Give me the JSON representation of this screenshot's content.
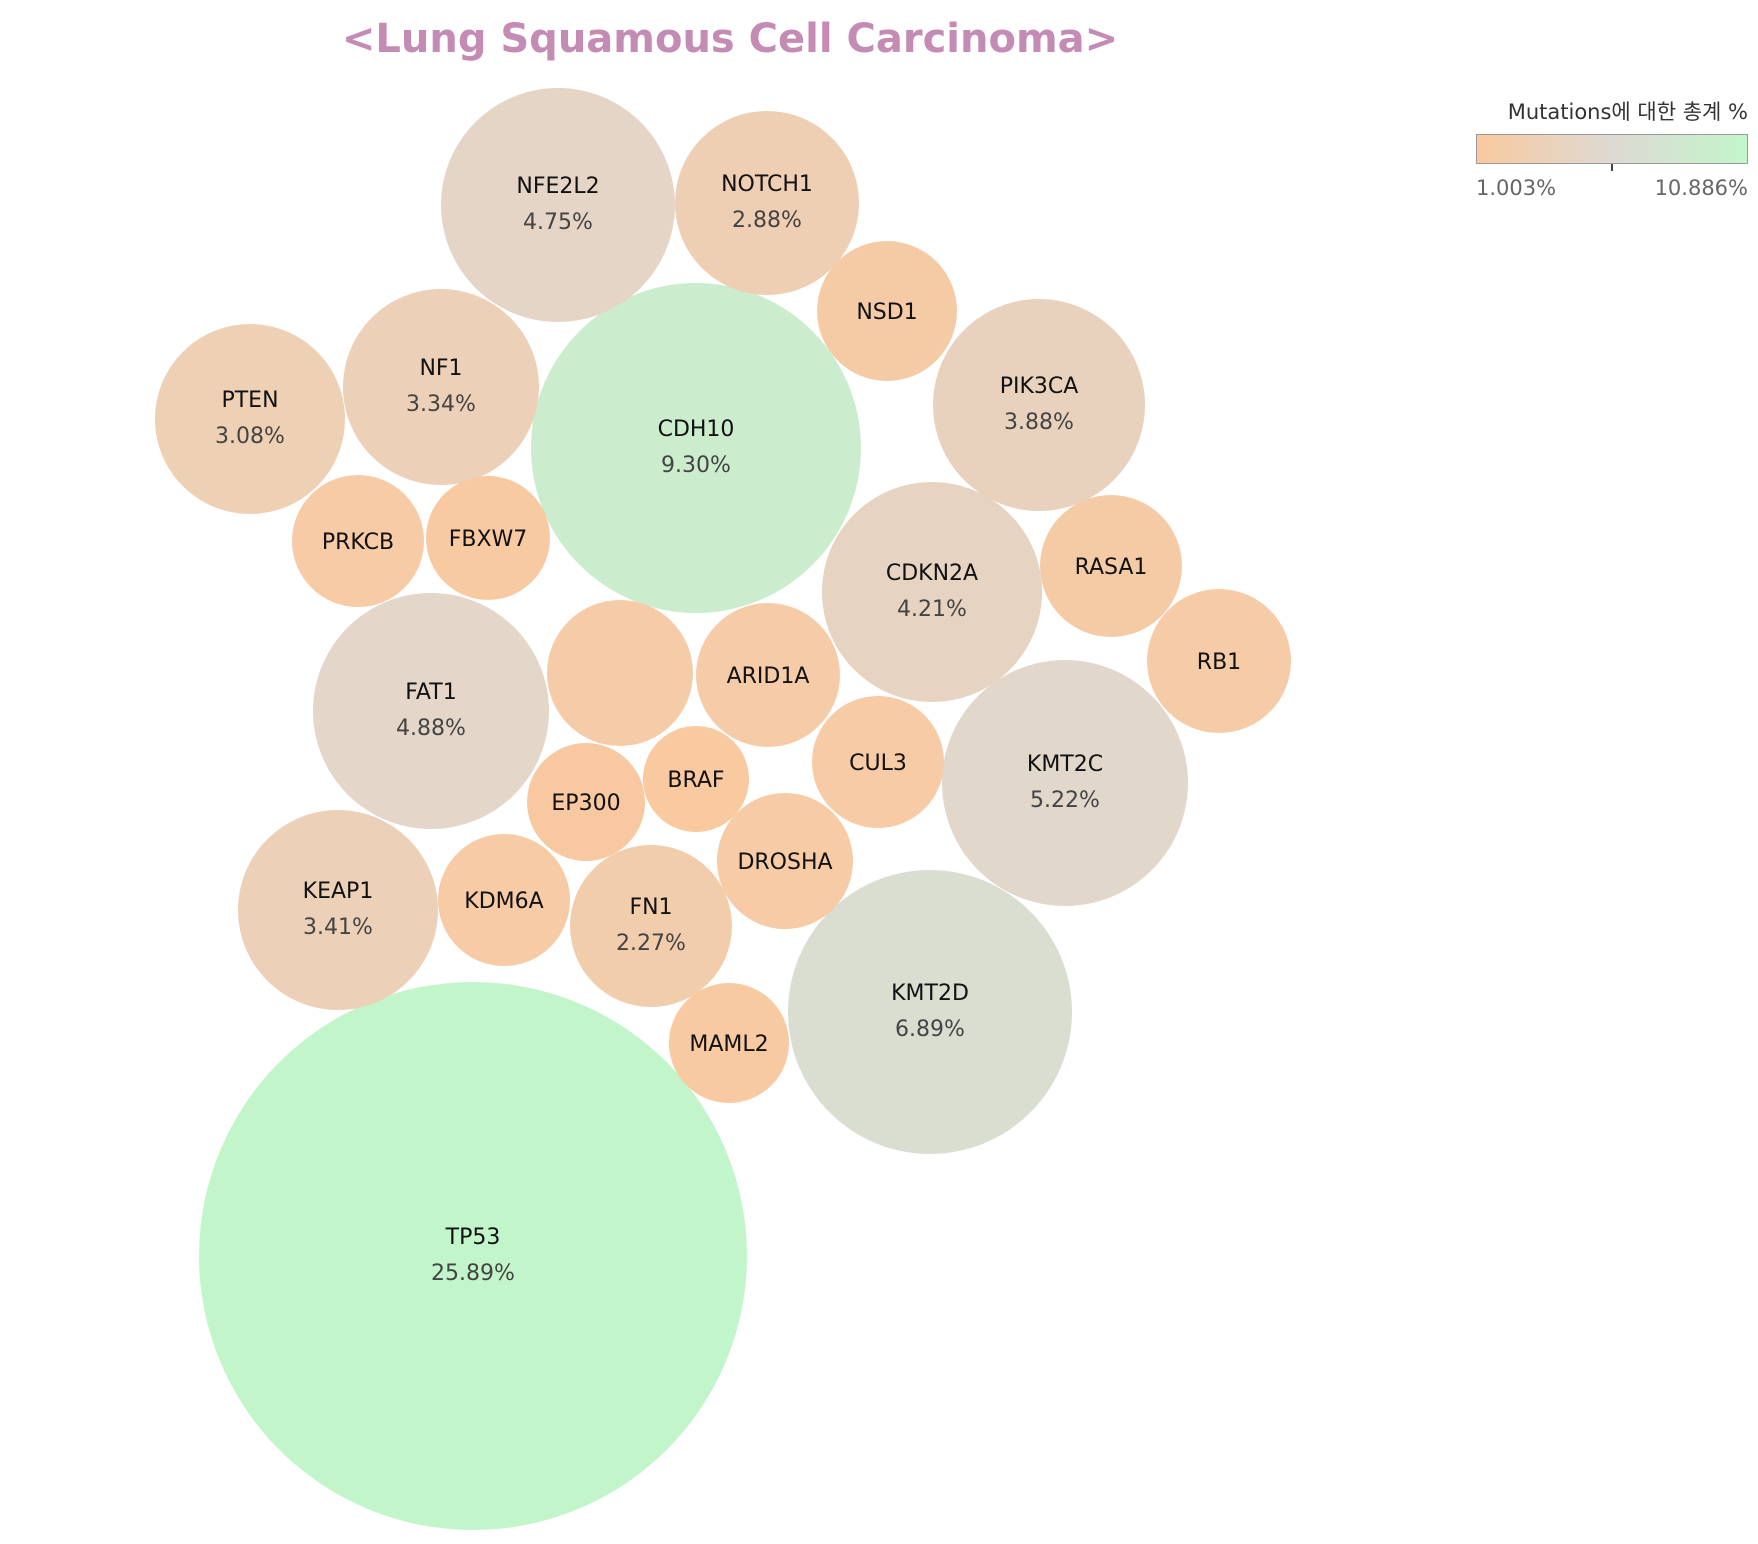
{
  "chart_data": {
    "type": "bubble",
    "title": "<Lung Squamous Cell Carcinoma>",
    "legend": {
      "title": "Mutations에 대한 총계 %",
      "min_label": "1.003%",
      "max_label": "10.886%",
      "min": 1.003,
      "max": 10.886,
      "placement": "top-right",
      "colors": [
        "#f9c99f",
        "#ded9d3",
        "#c3f5cb"
      ]
    },
    "bubbles": [
      {
        "gene": "TP53",
        "value": 25.89,
        "label": "25.89%"
      },
      {
        "gene": "CDH10",
        "value": 9.3,
        "label": "9.30%"
      },
      {
        "gene": "KMT2D",
        "value": 6.89,
        "label": "6.89%"
      },
      {
        "gene": "KMT2C",
        "value": 5.22,
        "label": "5.22%"
      },
      {
        "gene": "FAT1",
        "value": 4.88,
        "label": "4.88%"
      },
      {
        "gene": "NFE2L2",
        "value": 4.75,
        "label": "4.75%"
      },
      {
        "gene": "CDKN2A",
        "value": 4.21,
        "label": "4.21%"
      },
      {
        "gene": "PIK3CA",
        "value": 3.88,
        "label": "3.88%"
      },
      {
        "gene": "KEAP1",
        "value": 3.41,
        "label": "3.41%"
      },
      {
        "gene": "NF1",
        "value": 3.34,
        "label": "3.34%"
      },
      {
        "gene": "PTEN",
        "value": 3.08,
        "label": "3.08%"
      },
      {
        "gene": "NOTCH1",
        "value": 2.88,
        "label": "2.88%"
      },
      {
        "gene": "FN1",
        "value": 2.27,
        "label": "2.27%"
      },
      {
        "gene": "",
        "value": 1.8,
        "label": ""
      },
      {
        "gene": "ARID1A",
        "value": 1.8,
        "label": ""
      },
      {
        "gene": "RB1",
        "value": 1.8,
        "label": ""
      },
      {
        "gene": "NSD1",
        "value": 1.7,
        "label": ""
      },
      {
        "gene": "RASA1",
        "value": 1.7,
        "label": ""
      },
      {
        "gene": "DROSHA",
        "value": 1.6,
        "label": ""
      },
      {
        "gene": "PRKCB",
        "value": 1.55,
        "label": ""
      },
      {
        "gene": "CUL3",
        "value": 1.55,
        "label": ""
      },
      {
        "gene": "KDM6A",
        "value": 1.55,
        "label": ""
      },
      {
        "gene": "MAML2",
        "value": 1.25,
        "label": ""
      },
      {
        "gene": "FBXW7",
        "value": 1.3,
        "label": ""
      },
      {
        "gene": "EP300",
        "value": 1.15,
        "label": ""
      },
      {
        "gene": "BRAF",
        "value": 1.0,
        "label": ""
      }
    ]
  }
}
